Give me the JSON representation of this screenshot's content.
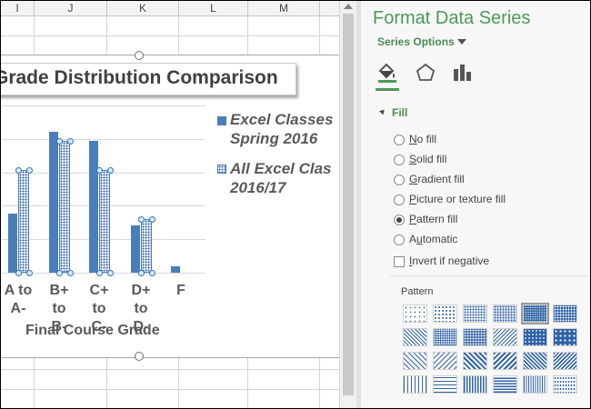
{
  "sheet": {
    "columns": [
      "I",
      "J",
      "K",
      "L",
      "M"
    ]
  },
  "chart": {
    "title": "Grade Distribution Comparison",
    "legend": [
      {
        "line1": "Excel Classes",
        "line2": "Spring 2016",
        "style": "solid"
      },
      {
        "line1": "All Excel Clas",
        "line2": "2016/17",
        "style": "pattern"
      }
    ]
  },
  "chart_data": {
    "type": "bar",
    "title": "Grade Distribution Comparison",
    "xlabel": "Final Course Grade",
    "ylabel": "",
    "categories": [
      {
        "line1": "A to",
        "line2": "A-"
      },
      {
        "line1": "B+ to",
        "line2": "B-"
      },
      {
        "line1": "C+ to",
        "line2": "C-"
      },
      {
        "line1": "D+ to",
        "line2": "D-"
      },
      {
        "line1": "F",
        "line2": ""
      }
    ],
    "series": [
      {
        "name": "Excel Classes Spring 2016",
        "values": [
          5.3,
          12.6,
          11.8,
          4.2,
          0.6
        ],
        "color": "#4a7ebb",
        "fill": "solid"
      },
      {
        "name": "All Excel Clas 2016/17",
        "values": [
          9.2,
          11.8,
          9.2,
          4.8,
          0
        ],
        "color": "#4a7ebb",
        "fill": "pattern"
      }
    ],
    "ylim": [
      0,
      15
    ],
    "grid": true,
    "legend_position": "right"
  },
  "pane": {
    "title": "Format Data Series",
    "series_options": "Series Options",
    "icons": [
      "fill-line-icon",
      "effects-pentagon-icon",
      "series-options-bars-icon"
    ],
    "section": "Fill",
    "options": [
      {
        "prefix": "",
        "key": "N",
        "rest": "o fill",
        "checked": false
      },
      {
        "prefix": "",
        "key": "S",
        "rest": "olid fill",
        "checked": false
      },
      {
        "prefix": "",
        "key": "G",
        "rest": "radient fill",
        "checked": false
      },
      {
        "prefix": "",
        "key": "P",
        "rest": "icture or texture fill",
        "checked": false
      },
      {
        "prefix": "",
        "key": "P",
        "rest": "attern fill",
        "checked": true
      },
      {
        "prefix": "A",
        "key": "u",
        "rest": "tomatic",
        "checked": false
      }
    ],
    "invert": {
      "prefix": "",
      "key": "I",
      "rest": "nvert if negative",
      "checked": false
    },
    "pattern_label": "Pattern",
    "pattern_selected": 4,
    "accent": "#4a9a55"
  }
}
